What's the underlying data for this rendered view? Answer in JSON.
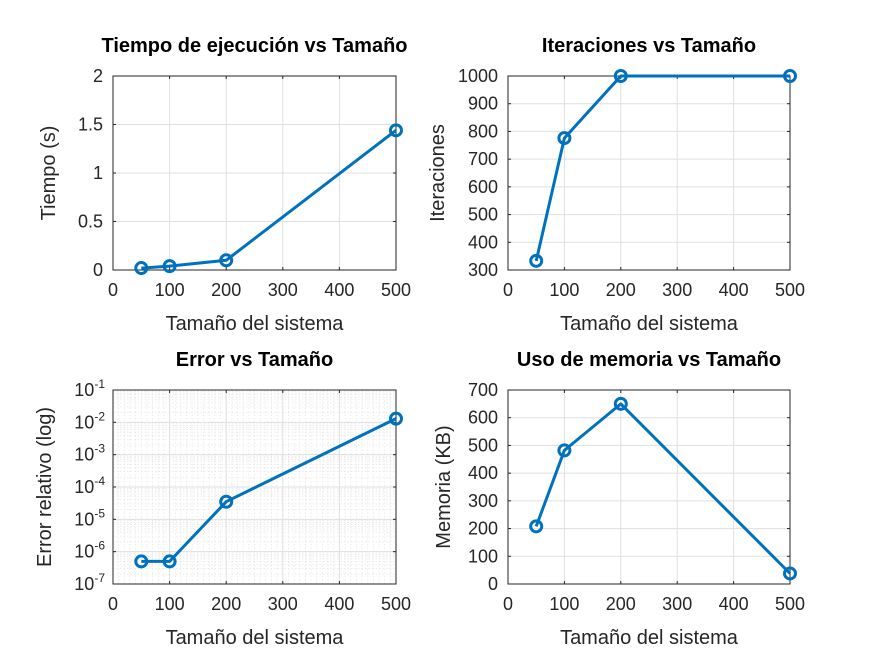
{
  "chart_data": [
    {
      "type": "line",
      "title": "Tiempo de ejecución vs Tamaño",
      "xlabel": "Tamaño del sistema",
      "ylabel": "Tiempo (s)",
      "xlim": [
        0,
        500
      ],
      "ylim": [
        0,
        2
      ],
      "xticks": [
        0,
        100,
        200,
        300,
        400,
        500
      ],
      "yticks": [
        0,
        0.5,
        1,
        1.5,
        2
      ],
      "yscale": "linear",
      "grid": true,
      "color": "#0072BD",
      "marker": "circle",
      "x": [
        50,
        100,
        200,
        500
      ],
      "y": [
        0.02,
        0.04,
        0.1,
        1.44
      ]
    },
    {
      "type": "line",
      "title": "Iteraciones vs Tamaño",
      "xlabel": "Tamaño del sistema",
      "ylabel": "Iteraciones",
      "xlim": [
        0,
        500
      ],
      "ylim": [
        300,
        1000
      ],
      "xticks": [
        0,
        100,
        200,
        300,
        400,
        500
      ],
      "yticks": [
        300,
        400,
        500,
        600,
        700,
        800,
        900,
        1000
      ],
      "yscale": "linear",
      "grid": true,
      "color": "#0072BD",
      "marker": "circle",
      "x": [
        50,
        100,
        200,
        500
      ],
      "y": [
        333,
        776,
        1000,
        1000
      ]
    },
    {
      "type": "line",
      "title": "Error vs Tamaño",
      "xlabel": "Tamaño del sistema",
      "ylabel": "Error relativo (log)",
      "xlim": [
        0,
        500
      ],
      "ylim": [
        1e-07,
        0.1
      ],
      "xticks": [
        0,
        100,
        200,
        300,
        400,
        500
      ],
      "yticks": [
        -7,
        -6,
        -5,
        -4,
        -3,
        -2,
        -1
      ],
      "yscale": "log",
      "grid": true,
      "color": "#0072BD",
      "marker": "circle",
      "x": [
        50,
        100,
        200,
        500
      ],
      "y": [
        5e-07,
        5e-07,
        3.5e-05,
        0.013
      ]
    },
    {
      "type": "line",
      "title": "Uso de memoria vs Tamaño",
      "xlabel": "Tamaño del sistema",
      "ylabel": "Memoria (KB)",
      "xlim": [
        0,
        500
      ],
      "ylim": [
        0,
        700
      ],
      "xticks": [
        0,
        100,
        200,
        300,
        400,
        500
      ],
      "yticks": [
        0,
        100,
        200,
        300,
        400,
        500,
        600,
        700
      ],
      "yscale": "linear",
      "grid": true,
      "color": "#0072BD",
      "marker": "circle",
      "x": [
        50,
        100,
        200,
        500
      ],
      "y": [
        208,
        482,
        650,
        38
      ]
    }
  ]
}
